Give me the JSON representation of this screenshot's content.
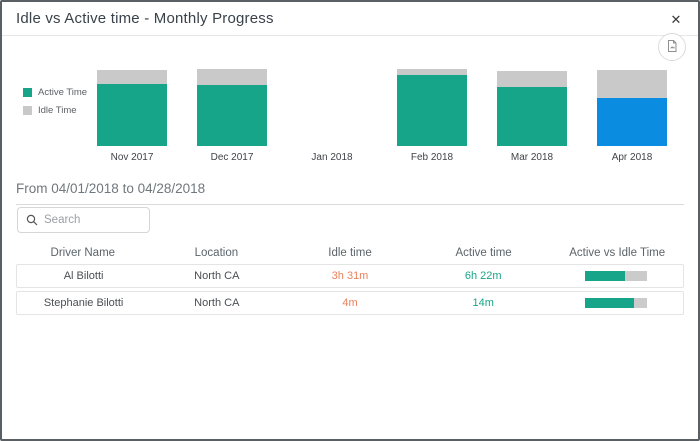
{
  "dialog": {
    "title": "Idle vs Active time - Monthly Progress"
  },
  "icons": {
    "close": "✕",
    "export": "export-report-icon",
    "search": "magnifier"
  },
  "colors": {
    "active": "#17a589",
    "idle": "#c9c9c9",
    "highlight": "#0a8ce0",
    "idle_text": "#e8825d",
    "active_text": "#17a589"
  },
  "chart_data": {
    "type": "bar",
    "stacked": true,
    "categories": [
      "Nov 2017",
      "Dec 2017",
      "Jan 2018",
      "Feb 2018",
      "Mar 2018",
      "Apr 2018"
    ],
    "series": [
      {
        "name": "Active Time",
        "values": [
          81,
          79,
          0,
          92,
          77,
          62
        ]
      },
      {
        "name": "Idle Time",
        "values": [
          18,
          21,
          0,
          8,
          21,
          36
        ]
      }
    ],
    "values_unit": "percent of chart height (estimated from pixels, no axis shown)",
    "highlighted_category": "Apr 2018",
    "legend": [
      "Active Time",
      "Idle Time"
    ],
    "legend_position": "left",
    "axes_hidden": true
  },
  "filter": {
    "date_range": "From 04/01/2018 to 04/28/2018"
  },
  "search": {
    "placeholder": "Search",
    "value": ""
  },
  "table": {
    "columns": [
      "Driver Name",
      "Location",
      "Idle time",
      "Active time",
      "Active vs Idle Time"
    ],
    "rows": [
      {
        "driver": "Al Bilotti",
        "location": "North CA",
        "idle": "3h 31m",
        "active": "6h 22m",
        "active_pct": 64
      },
      {
        "driver": "Stephanie Bilotti",
        "location": "North CA",
        "idle": "4m",
        "active": "14m",
        "active_pct": 78
      }
    ]
  }
}
